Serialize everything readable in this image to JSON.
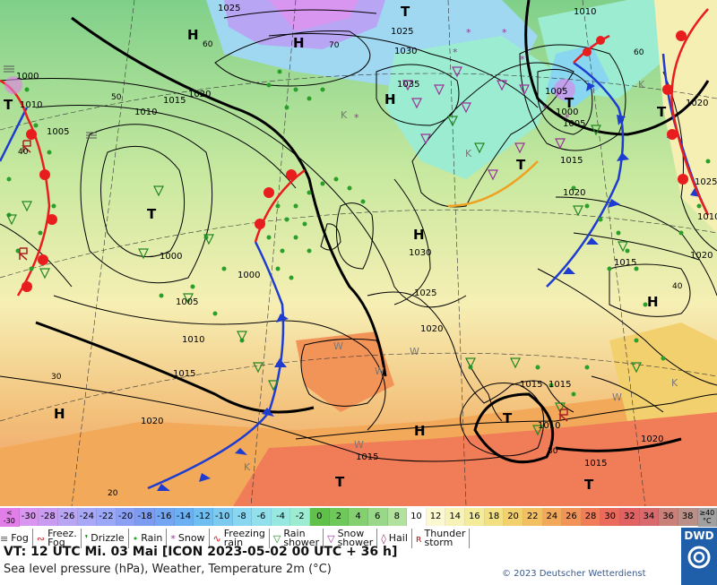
{
  "map": {
    "pressure_labels": [
      {
        "text": "1025"
      },
      {
        "text": "1025"
      },
      {
        "text": "1030"
      },
      {
        "text": "1035"
      },
      {
        "text": "1020"
      },
      {
        "text": "1015"
      },
      {
        "text": "1010"
      },
      {
        "text": "1005"
      },
      {
        "text": "1000"
      },
      {
        "text": "1000"
      },
      {
        "text": "1005"
      },
      {
        "text": "1010"
      },
      {
        "text": "1015"
      },
      {
        "text": "1020"
      },
      {
        "text": "1030"
      },
      {
        "text": "1025"
      },
      {
        "text": "1020"
      },
      {
        "text": "1015"
      },
      {
        "text": "1010"
      },
      {
        "text": "1015"
      },
      {
        "text": "1020"
      },
      {
        "text": "1005"
      },
      {
        "text": "1000"
      },
      {
        "text": "1005"
      },
      {
        "text": "1010"
      },
      {
        "text": "1015"
      },
      {
        "text": "1020"
      },
      {
        "text": "1025"
      },
      {
        "text": "1020"
      },
      {
        "text": "1015"
      },
      {
        "text": "1010"
      },
      {
        "text": "1015"
      },
      {
        "text": "1020"
      },
      {
        "text": "1015"
      },
      {
        "text": "1010"
      },
      {
        "text": "1000"
      }
    ],
    "centers": [
      {
        "text": "H"
      },
      {
        "text": "H"
      },
      {
        "text": "T"
      },
      {
        "text": "H"
      },
      {
        "text": "T"
      },
      {
        "text": "T"
      },
      {
        "text": "T"
      },
      {
        "text": "H"
      },
      {
        "text": "H"
      },
      {
        "text": "H"
      },
      {
        "text": "T"
      },
      {
        "text": "T"
      },
      {
        "text": "T"
      },
      {
        "text": "H"
      },
      {
        "text": "T"
      },
      {
        "text": "T"
      }
    ],
    "latitude_labels": [
      {
        "text": "60"
      },
      {
        "text": "70"
      },
      {
        "text": "50"
      },
      {
        "text": "40"
      },
      {
        "text": "30"
      },
      {
        "text": "20"
      },
      {
        "text": "60"
      },
      {
        "text": "40"
      },
      {
        "text": "30"
      }
    ],
    "pressure_system_letters": [
      {
        "text": "K"
      },
      {
        "text": "K"
      },
      {
        "text": "K"
      },
      {
        "text": "W"
      },
      {
        "text": "W"
      },
      {
        "text": "W"
      },
      {
        "text": "W"
      },
      {
        "text": "K"
      },
      {
        "text": "K"
      },
      {
        "text": "W"
      }
    ]
  },
  "scale": {
    "cells": [
      {
        "label": "<\n-30",
        "color": "#e27ee8"
      },
      {
        "label": "-30",
        "color": "#d996f0"
      },
      {
        "label": "-28",
        "color": "#c99cf2"
      },
      {
        "label": "-26",
        "color": "#b8a6f4"
      },
      {
        "label": "-24",
        "color": "#a8a8f7"
      },
      {
        "label": "-22",
        "color": "#9aa8f7"
      },
      {
        "label": "-20",
        "color": "#8aa0f5"
      },
      {
        "label": "-18",
        "color": "#7c9cf2"
      },
      {
        "label": "-16",
        "color": "#73a6f2"
      },
      {
        "label": "-14",
        "color": "#6ab0f2"
      },
      {
        "label": "-12",
        "color": "#6fbef2"
      },
      {
        "label": "-10",
        "color": "#7ccaf0"
      },
      {
        "label": "-8",
        "color": "#88d6f0"
      },
      {
        "label": "-6",
        "color": "#92e0ec"
      },
      {
        "label": "-4",
        "color": "#98e8e2"
      },
      {
        "label": "-2",
        "color": "#9cecd2"
      },
      {
        "label": "0",
        "color": "#5fc04a"
      },
      {
        "label": "2",
        "color": "#6ec85a"
      },
      {
        "label": "4",
        "color": "#84d070"
      },
      {
        "label": "6",
        "color": "#98d888"
      },
      {
        "label": "8",
        "color": "#b2e29e"
      },
      {
        "label": "10",
        "color": "#ffffff"
      },
      {
        "label": "12",
        "color": "#fbf8d2"
      },
      {
        "label": "14",
        "color": "#f7f2b8"
      },
      {
        "label": "16",
        "color": "#f4ec9a"
      },
      {
        "label": "18",
        "color": "#f2e082"
      },
      {
        "label": "20",
        "color": "#f2d06e"
      },
      {
        "label": "22",
        "color": "#f2bf62"
      },
      {
        "label": "24",
        "color": "#f2aa5a"
      },
      {
        "label": "26",
        "color": "#f29458"
      },
      {
        "label": "28",
        "color": "#f07c58"
      },
      {
        "label": "30",
        "color": "#ea6a5c"
      },
      {
        "label": "32",
        "color": "#e06262"
      },
      {
        "label": "34",
        "color": "#d86a6e"
      },
      {
        "label": "36",
        "color": "#c88078"
      },
      {
        "label": "38",
        "color": "#b89088"
      },
      {
        "label": "≥40\n°C",
        "color": "#a0a0a0"
      }
    ]
  },
  "legend": {
    "items": [
      {
        "symbol": "≡",
        "label": "Fog",
        "symbol_color": "#555555"
      },
      {
        "symbol": "∾",
        "label": "Freez.\nFog",
        "symbol_color": "#cc2222"
      },
      {
        "symbol": "❜",
        "label": "Drizzle",
        "symbol_color": "#228822"
      },
      {
        "symbol": "•",
        "label": "Rain",
        "symbol_color": "#22aa22"
      },
      {
        "symbol": "*",
        "label": "Snow",
        "symbol_color": "#993399"
      },
      {
        "symbol": "∿",
        "label": "Freezing\nrain",
        "symbol_color": "#cc2222"
      },
      {
        "symbol": "▽",
        "label": "Rain\nshower",
        "symbol_color": "#228822"
      },
      {
        "symbol": "▽",
        "label": "Snow\nshower",
        "symbol_color": "#993399"
      },
      {
        "symbol": "◊",
        "label": "Hail",
        "symbol_color": "#993366"
      },
      {
        "symbol": "ʀ",
        "label": "Thunder\nstorm",
        "symbol_color": "#aa2222"
      }
    ]
  },
  "footer": {
    "line1": "VT: 12 UTC Mi.  03 Mai [ICON 2023-05-02  00 UTC + 36 h]",
    "line2": "Sea level pressure (hPa), Weather, Temperature 2m (°C)",
    "copyright": "© 2023 Deutscher Wetterdienst",
    "logo": "DWD"
  },
  "colors": {
    "cold_front": "#1e3cd0",
    "warm_front": "#e81e1e",
    "trough": "#f0a020",
    "isobar": "#000000"
  }
}
